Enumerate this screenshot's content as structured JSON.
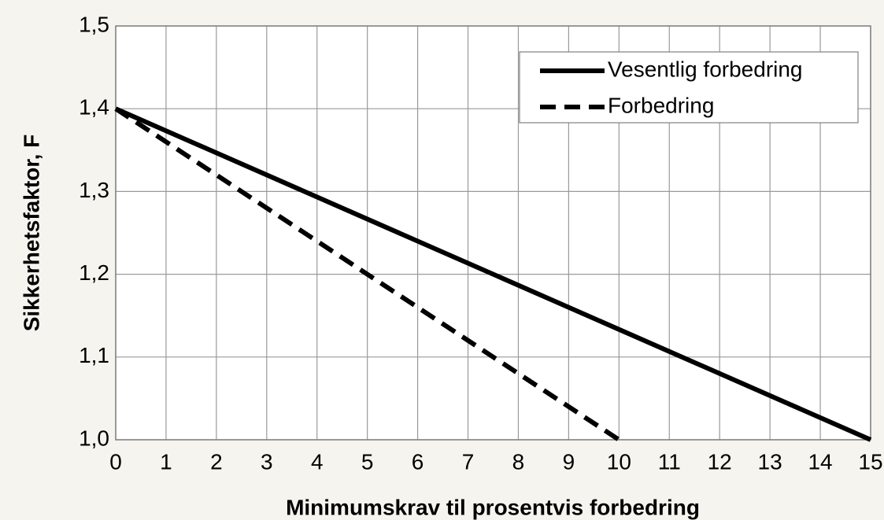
{
  "chart_data": {
    "type": "line",
    "xlabel": "Minimumskrav til prosentvis forbedring",
    "ylabel": "Sikkerhetsfaktor, F",
    "series": [
      {
        "name": "Vesentlig forbedring",
        "color": "#000000",
        "style": "solid",
        "x": [
          0,
          15
        ],
        "values": [
          1.4,
          1.0
        ]
      },
      {
        "name": "Forbedring",
        "color": "#000000",
        "style": "dashed",
        "x": [
          0,
          10
        ],
        "values": [
          1.4,
          1.0
        ]
      }
    ],
    "xlim": [
      0,
      15
    ],
    "xticks": [
      0,
      1,
      2,
      3,
      4,
      5,
      6,
      7,
      8,
      9,
      10,
      11,
      12,
      13,
      14,
      15
    ],
    "ylim": [
      1.0,
      1.5
    ],
    "yticks": [
      {
        "value": 1.0,
        "label": "1,0"
      },
      {
        "value": 1.1,
        "label": "1,1"
      },
      {
        "value": 1.2,
        "label": "1,2"
      },
      {
        "value": 1.3,
        "label": "1,3"
      },
      {
        "value": 1.4,
        "label": "1,4"
      },
      {
        "value": 1.5,
        "label": "1,5"
      }
    ],
    "grid": true,
    "legend": "upper right"
  }
}
